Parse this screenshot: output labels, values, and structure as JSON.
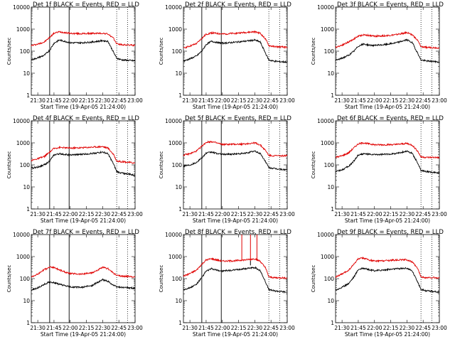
{
  "figure": {
    "xlabel": "Start Time (19-Apr-05 21:24:00)",
    "ylabel": "Counts/sec"
  },
  "chart_data": [
    {
      "type": "line",
      "title": "Det 1f BLACK = Events, RED = LLD",
      "xlabel": "Start Time (19-Apr-05 21:24:00)",
      "ylabel": "Counts/sec",
      "yscale": "log",
      "xlim": [
        "21:24",
        "23:00"
      ],
      "ylim": [
        1,
        10000
      ],
      "x_ticks": [
        "21:30",
        "21:45",
        "22:00",
        "22:15",
        "22:30",
        "22:45",
        "23:00"
      ],
      "y_ticks": [
        "1",
        "10",
        "100",
        "1000",
        "10000"
      ],
      "vlines_solid": [
        "21:41",
        "21:59"
      ],
      "vlines_dotted": [
        "22:43",
        "22:53"
      ],
      "x": [
        "21:24",
        "21:30",
        "21:36",
        "21:41",
        "21:45",
        "21:50",
        "21:55",
        "22:00",
        "22:10",
        "22:20",
        "22:30",
        "22:35",
        "22:40",
        "22:43",
        "22:48",
        "22:55",
        "23:00"
      ],
      "series": [
        {
          "name": "LLD",
          "color": "#e00000",
          "values": [
            180,
            210,
            260,
            420,
            650,
            760,
            700,
            640,
            620,
            640,
            650,
            600,
            380,
            220,
            195,
            190,
            185
          ]
        },
        {
          "name": "Events",
          "color": "#000000",
          "values": [
            40,
            50,
            65,
            110,
            230,
            320,
            280,
            240,
            240,
            260,
            300,
            280,
            90,
            48,
            40,
            38,
            36
          ]
        }
      ]
    },
    {
      "type": "line",
      "title": "Det 2f BLACK = Events, RED = LLD",
      "xlabel": "Start Time (19-Apr-05 21:24:00)",
      "ylabel": "Counts/sec",
      "yscale": "log",
      "xlim": [
        "21:24",
        "23:00"
      ],
      "ylim": [
        1,
        10000
      ],
      "x_ticks": [
        "21:30",
        "21:45",
        "22:00",
        "22:15",
        "22:30",
        "22:45",
        "23:00"
      ],
      "y_ticks": [
        "1",
        "10",
        "100",
        "1000",
        "10000"
      ],
      "vlines_solid": [
        "21:41",
        "21:59"
      ],
      "vlines_dotted": [
        "22:43",
        "22:53"
      ],
      "x": [
        "21:24",
        "21:30",
        "21:36",
        "21:41",
        "21:45",
        "21:50",
        "21:55",
        "22:00",
        "22:10",
        "22:20",
        "22:30",
        "22:35",
        "22:40",
        "22:43",
        "22:48",
        "22:55",
        "23:00"
      ],
      "series": [
        {
          "name": "LLD",
          "color": "#e00000",
          "values": [
            140,
            170,
            220,
            380,
            580,
            680,
            640,
            600,
            640,
            700,
            760,
            650,
            350,
            180,
            160,
            155,
            150
          ]
        },
        {
          "name": "Events",
          "color": "#000000",
          "values": [
            35,
            45,
            60,
            100,
            200,
            280,
            250,
            230,
            250,
            280,
            320,
            260,
            80,
            40,
            35,
            33,
            32
          ]
        }
      ]
    },
    {
      "type": "line",
      "title": "Det 3f BLACK = Events, RED = LLD",
      "xlabel": "Start Time (19-Apr-05 21:24:00)",
      "ylabel": "Counts/sec",
      "yscale": "log",
      "xlim": [
        "21:24",
        "23:00"
      ],
      "ylim": [
        1,
        10000
      ],
      "x_ticks": [
        "21:30",
        "21:45",
        "22:00",
        "22:15",
        "22:30",
        "22:45",
        "23:00"
      ],
      "y_ticks": [
        "1",
        "10",
        "100",
        "1000",
        "10000"
      ],
      "vlines_solid": [],
      "vlines_dotted": [
        "22:43",
        "22:53"
      ],
      "x": [
        "21:24",
        "21:30",
        "21:36",
        "21:41",
        "21:45",
        "21:50",
        "21:55",
        "22:00",
        "22:10",
        "22:20",
        "22:30",
        "22:35",
        "22:40",
        "22:43",
        "22:48",
        "22:55",
        "23:00"
      ],
      "series": [
        {
          "name": "LLD",
          "color": "#e00000",
          "values": [
            150,
            190,
            260,
            360,
            480,
            550,
            520,
            480,
            500,
            560,
            700,
            560,
            300,
            160,
            150,
            145,
            140
          ]
        },
        {
          "name": "Events",
          "color": "#000000",
          "values": [
            38,
            48,
            65,
            100,
            170,
            210,
            190,
            180,
            200,
            240,
            330,
            240,
            80,
            40,
            36,
            34,
            32
          ]
        }
      ]
    },
    {
      "type": "line",
      "title": "Det 4f BLACK = Events, RED = LLD",
      "xlabel": "Start Time (19-Apr-05 21:24:00)",
      "ylabel": "Counts/sec",
      "yscale": "log",
      "xlim": [
        "21:24",
        "23:00"
      ],
      "ylim": [
        1,
        10000
      ],
      "x_ticks": [
        "21:30",
        "21:45",
        "22:00",
        "22:15",
        "22:30",
        "22:45",
        "23:00"
      ],
      "y_ticks": [
        "1",
        "10",
        "100",
        "1000",
        "10000"
      ],
      "vlines_solid": [
        "21:41",
        "21:59"
      ],
      "vlines_dotted": [
        "22:43",
        "22:53"
      ],
      "x": [
        "21:24",
        "21:30",
        "21:36",
        "21:41",
        "21:45",
        "21:50",
        "21:55",
        "22:00",
        "22:10",
        "22:20",
        "22:30",
        "22:35",
        "22:40",
        "22:43",
        "22:48",
        "22:55",
        "23:00"
      ],
      "series": [
        {
          "name": "LLD",
          "color": "#e00000",
          "values": [
            160,
            190,
            240,
            380,
            560,
            620,
            600,
            580,
            600,
            640,
            680,
            580,
            300,
            150,
            140,
            130,
            120
          ]
        },
        {
          "name": "Events",
          "color": "#000000",
          "values": [
            70,
            80,
            100,
            150,
            280,
            320,
            300,
            280,
            300,
            330,
            380,
            320,
            110,
            50,
            42,
            38,
            32
          ]
        }
      ]
    },
    {
      "type": "line",
      "title": "Det 5f BLACK = Events, RED = LLD",
      "xlabel": "Start Time (19-Apr-05 21:24:00)",
      "ylabel": "Counts/sec",
      "yscale": "log",
      "xlim": [
        "21:24",
        "23:00"
      ],
      "ylim": [
        1,
        10000
      ],
      "x_ticks": [
        "21:30",
        "21:45",
        "22:00",
        "22:15",
        "22:30",
        "22:45",
        "23:00"
      ],
      "y_ticks": [
        "1",
        "10",
        "100",
        "1000",
        "10000"
      ],
      "vlines_solid": [
        "21:41",
        "21:59"
      ],
      "vlines_dotted": [
        "22:43",
        "22:53"
      ],
      "x": [
        "21:24",
        "21:30",
        "21:36",
        "21:41",
        "21:45",
        "21:50",
        "21:55",
        "22:00",
        "22:10",
        "22:20",
        "22:30",
        "22:35",
        "22:40",
        "22:43",
        "22:48",
        "22:55",
        "23:00"
      ],
      "series": [
        {
          "name": "LLD",
          "color": "#e00000",
          "values": [
            280,
            320,
            420,
            700,
            1050,
            1150,
            980,
            850,
            860,
            880,
            1000,
            800,
            450,
            270,
            260,
            260,
            260
          ]
        },
        {
          "name": "Events",
          "color": "#000000",
          "values": [
            90,
            100,
            130,
            210,
            340,
            380,
            330,
            300,
            310,
            330,
            420,
            330,
            140,
            75,
            68,
            62,
            60
          ]
        }
      ]
    },
    {
      "type": "line",
      "title": "Det 6f BLACK = Events, RED = LLD",
      "xlabel": "Start Time (19-Apr-05 21:24:00)",
      "ylabel": "Counts/sec",
      "yscale": "log",
      "xlim": [
        "21:24",
        "23:00"
      ],
      "ylim": [
        1,
        10000
      ],
      "x_ticks": [
        "21:30",
        "21:45",
        "22:00",
        "22:15",
        "22:30",
        "22:45",
        "23:00"
      ],
      "y_ticks": [
        "1",
        "10",
        "100",
        "1000",
        "10000"
      ],
      "vlines_solid": [],
      "vlines_dotted": [
        "22:43",
        "22:53"
      ],
      "x": [
        "21:24",
        "21:30",
        "21:36",
        "21:41",
        "21:45",
        "21:50",
        "21:55",
        "22:00",
        "22:10",
        "22:20",
        "22:30",
        "22:35",
        "22:40",
        "22:43",
        "22:48",
        "22:55",
        "23:00"
      ],
      "series": [
        {
          "name": "LLD",
          "color": "#e00000",
          "values": [
            220,
            260,
            350,
            600,
            900,
            1000,
            900,
            820,
            820,
            840,
            950,
            780,
            420,
            230,
            220,
            220,
            215
          ]
        },
        {
          "name": "Events",
          "color": "#000000",
          "values": [
            50,
            60,
            85,
            150,
            280,
            320,
            300,
            290,
            300,
            330,
            420,
            330,
            120,
            55,
            50,
            45,
            42
          ]
        }
      ]
    },
    {
      "type": "line",
      "title": "Det 7f BLACK = Events, RED = LLD",
      "xlabel": "Start Time (19-Apr-05 21:24:00)",
      "ylabel": "Counts/sec",
      "yscale": "log",
      "xlim": [
        "21:24",
        "23:00"
      ],
      "ylim": [
        1,
        10000
      ],
      "x_ticks": [
        "21:30",
        "21:45",
        "22:00",
        "22:15",
        "22:30",
        "22:45",
        "23:00"
      ],
      "y_ticks": [
        "1",
        "10",
        "100",
        "1000",
        "10000"
      ],
      "vlines_solid": [
        "21:41",
        "21:59"
      ],
      "vlines_dotted": [
        "22:43",
        "22:53"
      ],
      "x": [
        "21:24",
        "21:30",
        "21:36",
        "21:41",
        "21:45",
        "21:50",
        "21:55",
        "22:00",
        "22:10",
        "22:20",
        "22:30",
        "22:35",
        "22:40",
        "22:43",
        "22:48",
        "22:55",
        "23:00"
      ],
      "series": [
        {
          "name": "LLD",
          "color": "#e00000",
          "values": [
            120,
            160,
            260,
            330,
            320,
            250,
            200,
            170,
            160,
            180,
            320,
            280,
            180,
            140,
            130,
            125,
            120
          ]
        },
        {
          "name": "Events",
          "color": "#000000",
          "values": [
            30,
            38,
            55,
            70,
            66,
            55,
            48,
            42,
            40,
            48,
            90,
            75,
            50,
            42,
            40,
            38,
            37
          ]
        }
      ]
    },
    {
      "type": "line",
      "title": "Det 8f BLACK = Events, RED = LLD",
      "xlabel": "Start Time (19-Apr-05 21:24:00)",
      "ylabel": "Counts/sec",
      "yscale": "log",
      "xlim": [
        "21:24",
        "23:00"
      ],
      "ylim": [
        1,
        10000
      ],
      "x_ticks": [
        "21:30",
        "21:45",
        "22:00",
        "22:15",
        "22:30",
        "22:45",
        "23:00"
      ],
      "y_ticks": [
        "1",
        "10",
        "100",
        "1000",
        "10000"
      ],
      "vlines_solid": [
        "21:41",
        "21:59"
      ],
      "vlines_dotted": [
        "22:43",
        "22:53"
      ],
      "x": [
        "21:24",
        "21:30",
        "21:36",
        "21:41",
        "21:45",
        "21:50",
        "21:55",
        "22:00",
        "22:10",
        "22:20",
        "22:30",
        "22:35",
        "22:40",
        "22:43",
        "22:48",
        "22:55",
        "23:00"
      ],
      "series": [
        {
          "name": "LLD",
          "color": "#e00000",
          "values": [
            130,
            170,
            240,
            450,
            700,
            800,
            700,
            620,
            640,
            700,
            800,
            620,
            300,
            120,
            110,
            110,
            105
          ]
        },
        {
          "name": "Events",
          "color": "#000000",
          "values": [
            32,
            38,
            55,
            110,
            220,
            280,
            240,
            220,
            240,
            280,
            320,
            230,
            70,
            32,
            28,
            26,
            24
          ]
        }
      ],
      "spikes": [
        {
          "x": "22:18",
          "values": [
            10000
          ]
        },
        {
          "x": "22:26",
          "values": [
            10000,
            400
          ]
        },
        {
          "x": "22:32",
          "values": [
            10000
          ]
        }
      ]
    },
    {
      "type": "line",
      "title": "Det 9f BLACK = Events, RED = LLD",
      "xlabel": "Start Time (19-Apr-05 21:24:00)",
      "ylabel": "Counts/sec",
      "yscale": "log",
      "xlim": [
        "21:24",
        "23:00"
      ],
      "ylim": [
        1,
        10000
      ],
      "x_ticks": [
        "21:30",
        "21:45",
        "22:00",
        "22:15",
        "22:30",
        "22:45",
        "23:00"
      ],
      "y_ticks": [
        "1",
        "10",
        "100",
        "1000",
        "10000"
      ],
      "vlines_solid": [],
      "vlines_dotted": [
        "22:43",
        "22:53"
      ],
      "x": [
        "21:24",
        "21:30",
        "21:36",
        "21:41",
        "21:45",
        "21:50",
        "21:55",
        "22:00",
        "22:10",
        "22:20",
        "22:30",
        "22:35",
        "22:40",
        "22:43",
        "22:48",
        "22:55",
        "23:00"
      ],
      "series": [
        {
          "name": "LLD",
          "color": "#e00000",
          "values": [
            120,
            160,
            240,
            450,
            800,
            850,
            700,
            620,
            660,
            700,
            720,
            560,
            280,
            120,
            110,
            110,
            105
          ]
        },
        {
          "name": "Events",
          "color": "#000000",
          "values": [
            30,
            40,
            60,
            120,
            260,
            300,
            250,
            230,
            250,
            280,
            300,
            220,
            70,
            32,
            28,
            26,
            24
          ]
        }
      ]
    }
  ]
}
